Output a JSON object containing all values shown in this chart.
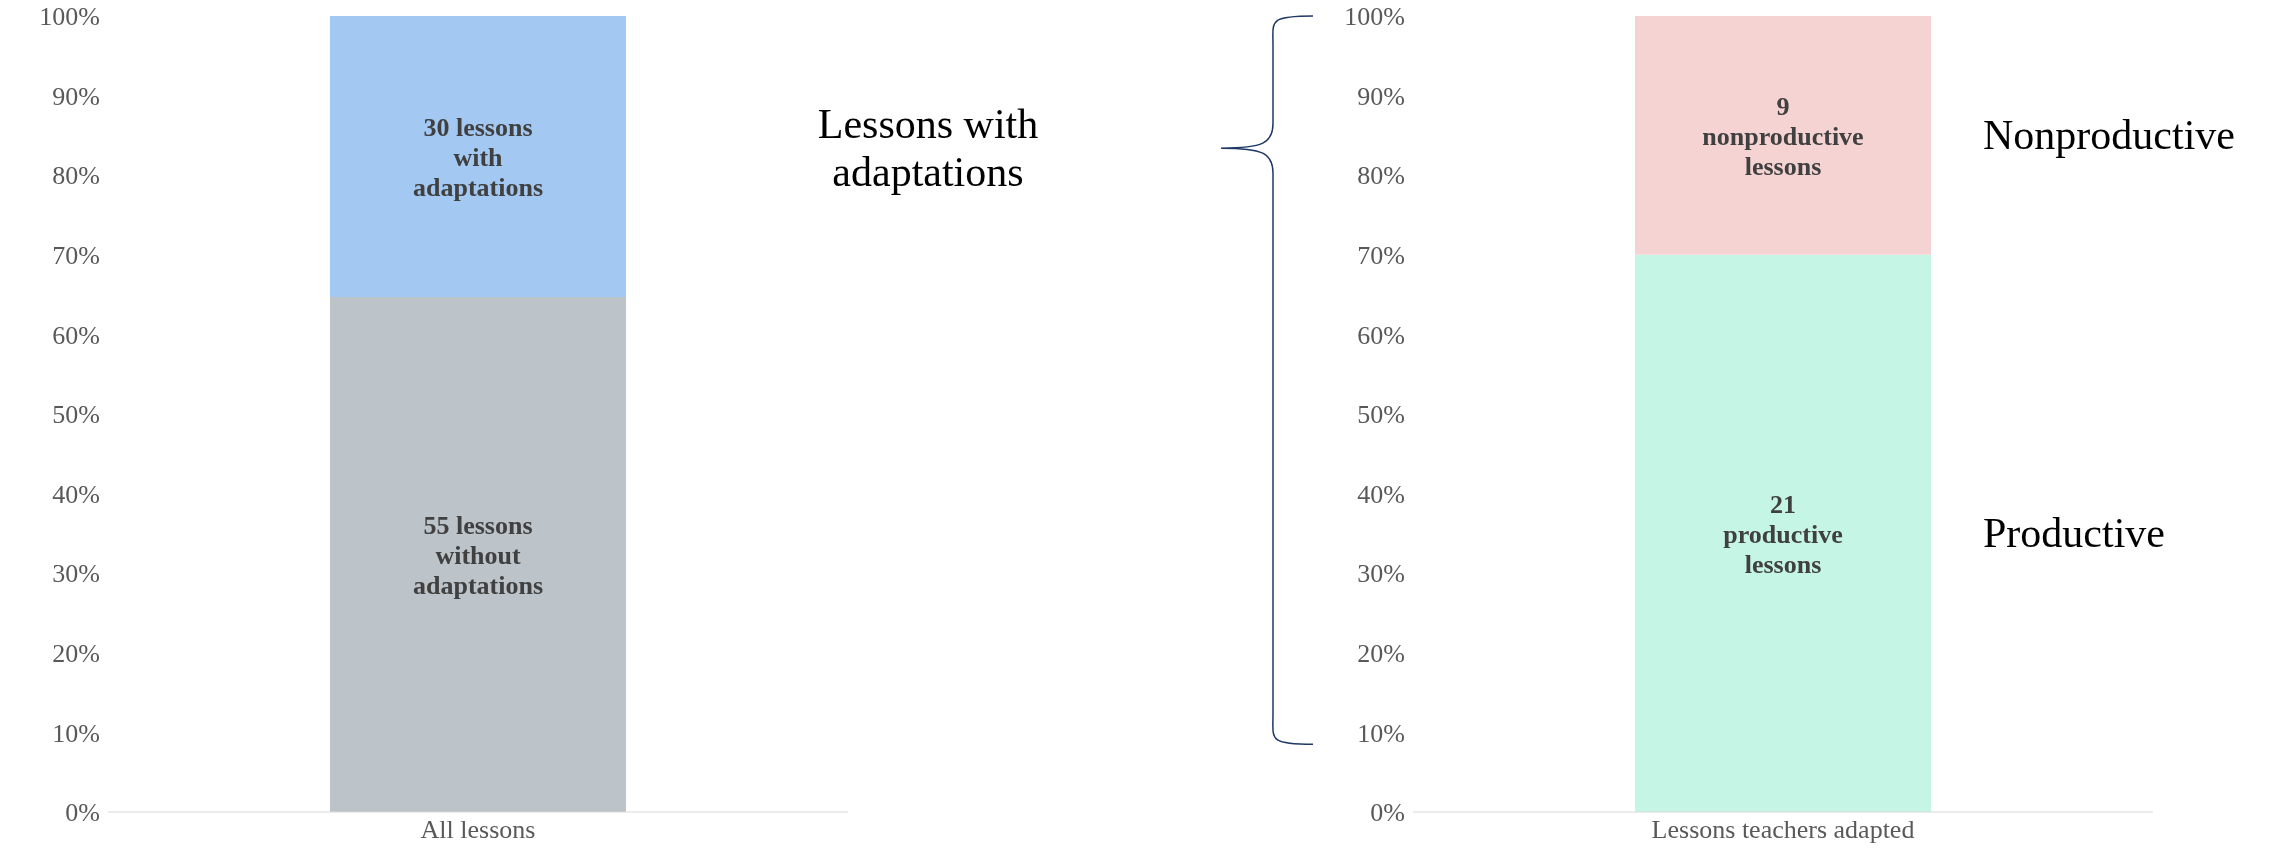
{
  "chart_data": [
    {
      "type": "bar",
      "stacked": true,
      "categories": [
        "All lessons"
      ],
      "series": [
        {
          "color": "#bcc3c9",
          "values": [
            64.7
          ]
        },
        {
          "color": "#a3c8f2",
          "values": [
            35.3
          ]
        }
      ],
      "annotations": [
        "55 lessons without adaptations",
        "30 lessons with adaptations"
      ],
      "ylim": [
        0,
        100
      ],
      "yticks": [
        {
          "value": 0,
          "label": "0%"
        },
        {
          "value": 10,
          "label": "10%"
        },
        {
          "value": 20,
          "label": "20%"
        },
        {
          "value": 30,
          "label": "30%"
        },
        {
          "value": 40,
          "label": "40%"
        },
        {
          "value": 50,
          "label": "50%"
        },
        {
          "value": 60,
          "label": "60%"
        },
        {
          "value": 70,
          "label": "70%"
        },
        {
          "value": 80,
          "label": "80%"
        },
        {
          "value": 90,
          "label": "90%"
        },
        {
          "value": 100,
          "label": "100%"
        }
      ],
      "grid": false,
      "legend": false
    },
    {
      "type": "bar",
      "stacked": true,
      "categories": [
        "Lessons teachers adapted"
      ],
      "series": [
        {
          "color": "#c5f5e5",
          "values": [
            70
          ]
        },
        {
          "color": "#f6d3d3",
          "values": [
            30
          ]
        }
      ],
      "ylim": [
        0,
        100
      ],
      "yticks": [
        {
          "value": 0,
          "label": "0%"
        },
        {
          "value": 10,
          "label": "10%"
        },
        {
          "value": 20,
          "label": "20%"
        },
        {
          "value": 30,
          "label": "30%"
        },
        {
          "value": 40,
          "label": "40%"
        },
        {
          "value": 50,
          "label": "50%"
        },
        {
          "value": 60,
          "label": "60%"
        },
        {
          "value": 70,
          "label": "70%"
        },
        {
          "value": 80,
          "label": "80%"
        },
        {
          "value": 90,
          "label": "90%"
        },
        {
          "value": 100,
          "label": "100%"
        }
      ],
      "grid": false,
      "legend": false,
      "annotations": [
        "Lessons with adaptations",
        "Nonproductive",
        "Productive",
        "21 productive lessons",
        "9 nonproductive lessons"
      ]
    }
  ]
}
